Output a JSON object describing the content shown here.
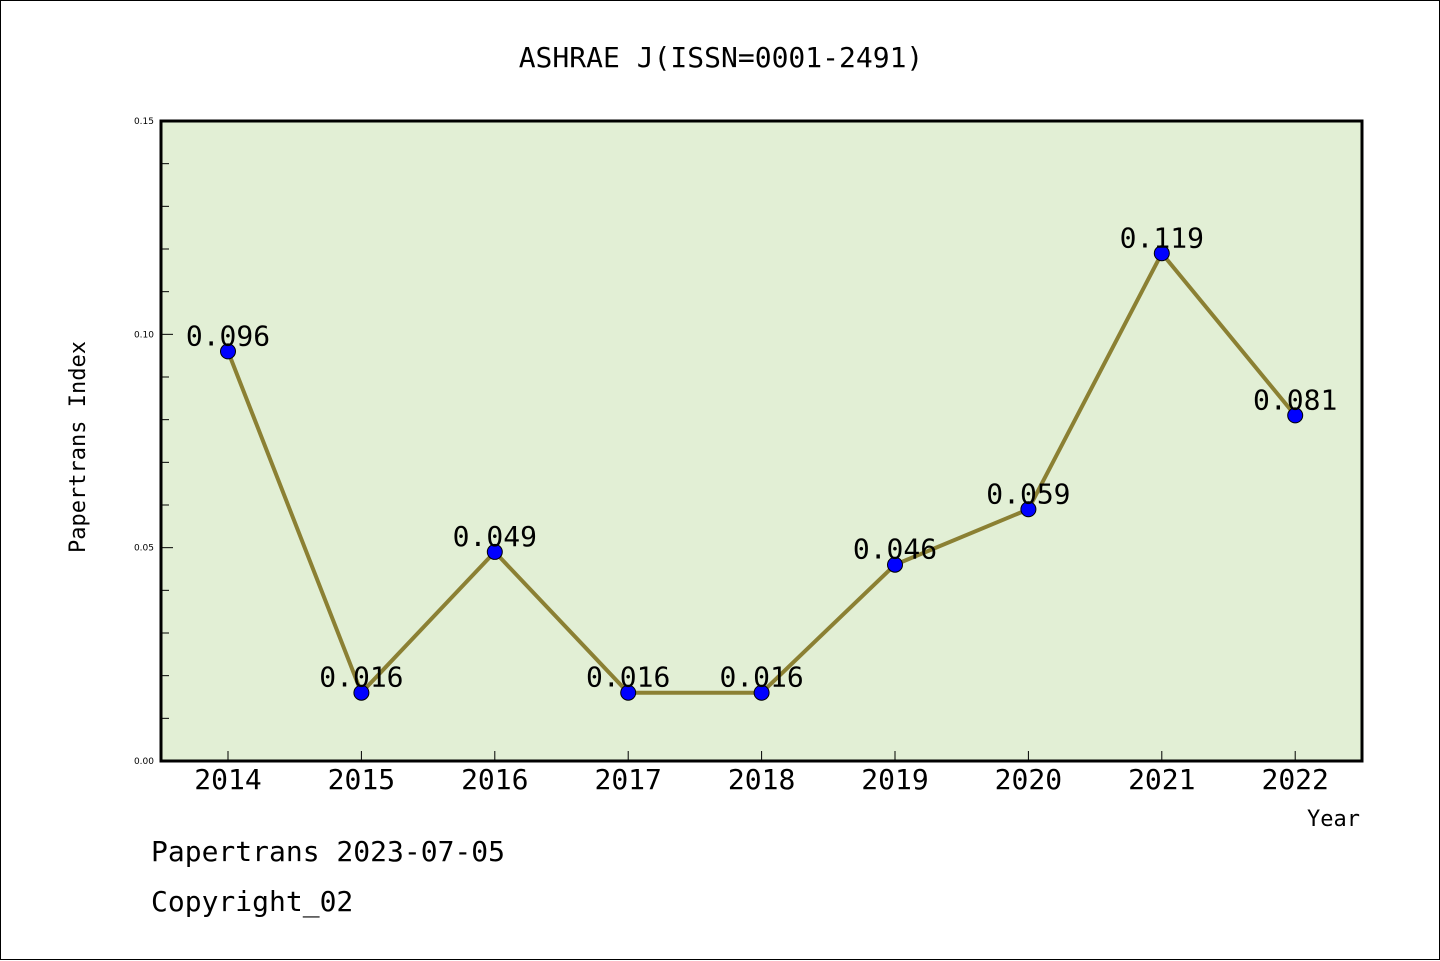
{
  "chart_data": {
    "type": "line",
    "title": "ASHRAE J(ISSN=0001-2491)",
    "xlabel": "Year",
    "ylabel": "Papertrans Index",
    "categories": [
      "2014",
      "2015",
      "2016",
      "2017",
      "2018",
      "2019",
      "2020",
      "2021",
      "2022"
    ],
    "series": [
      {
        "values": [
          0.096,
          0.016,
          0.049,
          0.016,
          0.016,
          0.046,
          0.059,
          0.119,
          0.081
        ],
        "labels": [
          "0.096",
          "0.016",
          "0.049",
          "0.016",
          "0.016",
          "0.046",
          "0.059",
          "0.119",
          "0.081"
        ],
        "line_color": "#8b8033",
        "marker_color": "#0000ff"
      }
    ],
    "ylim": [
      0,
      0.15
    ],
    "yticks": [
      "0.00",
      "0.05",
      "0.10",
      "0.15"
    ],
    "ytick_values": [
      0,
      0.05,
      0.1,
      0.15
    ],
    "plot_background": "#e2efd5",
    "grid": false,
    "legend": "none"
  },
  "footer": {
    "line1": "Papertrans 2023-07-05",
    "line2": "Copyright_02"
  }
}
